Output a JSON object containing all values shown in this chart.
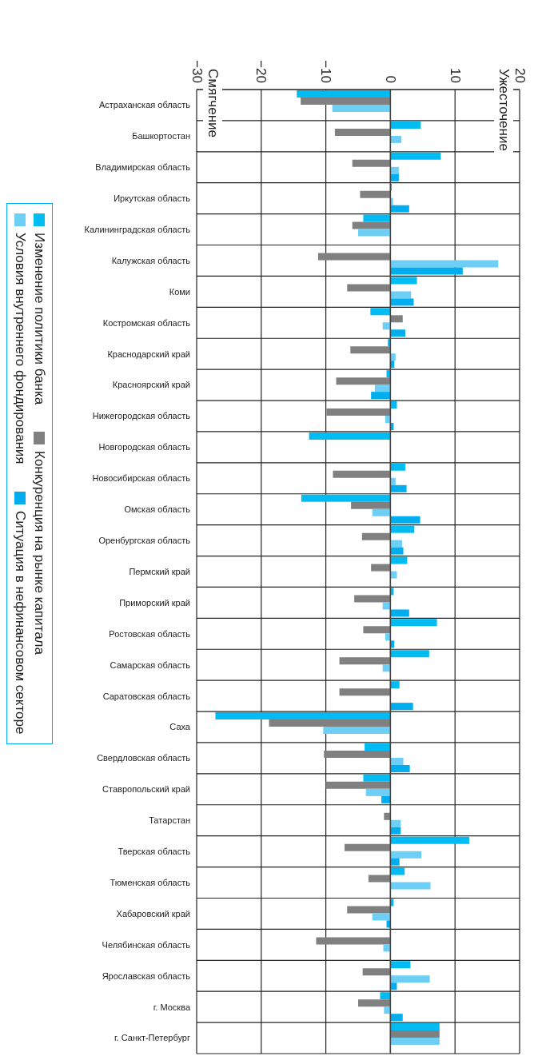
{
  "chart_data": {
    "type": "bar",
    "orientation": "horizontal",
    "categories": [
      "Астраханская область",
      "Башкортостан",
      "Владимирская область",
      "Иркутская область",
      "Калининградская область",
      "Калужская область",
      "Коми",
      "Костромская область",
      "Краснодарский край",
      "Красноярский край",
      "Нижегородская область",
      "Новгородская область",
      "Новосибирская область",
      "Омская область",
      "Оренбургская область",
      "Пермский край",
      "Приморский край",
      "Ростовская область",
      "Самарская область",
      "Саратовская область",
      "Саха",
      "Свердловская область",
      "Ставропольский край",
      "Татарстан",
      "Тверская область",
      "Тюменская область",
      "Хабаровский край",
      "Челябинская область",
      "Ярославская область",
      "г. Москва",
      "г. Санкт-Петербург"
    ],
    "series": [
      {
        "name": "Изменение политики банка",
        "color": "#00bcf2",
        "values": [
          -14.5,
          4.7,
          7.8,
          0.2,
          -4.2,
          null,
          4.1,
          -3.1,
          -0.4,
          -0.6,
          1.0,
          -12.6,
          2.3,
          -13.8,
          3.7,
          2.6,
          0.5,
          7.2,
          6.0,
          1.4,
          -27.1,
          -4.0,
          -4.2,
          null,
          12.2,
          2.2,
          0.5,
          null,
          3.1,
          -1.6,
          7.6
        ]
      },
      {
        "name": "Конкуренция на рынке капитала",
        "color": "#808080",
        "values": [
          -13.9,
          -8.6,
          -5.9,
          -4.7,
          -5.9,
          -11.2,
          -6.7,
          1.9,
          -6.2,
          -8.4,
          -9.9,
          null,
          -8.9,
          -6.1,
          -4.4,
          -3.0,
          -5.6,
          -4.2,
          -7.9,
          -7.9,
          -18.8,
          -10.3,
          -10.0,
          -1.0,
          -7.1,
          -3.4,
          -6.7,
          -11.5,
          -4.3,
          -5.0,
          7.6
        ]
      },
      {
        "name": "Условия внутреннего фондирования",
        "color": "#6dcff6",
        "values": [
          -9.0,
          1.7,
          1.3,
          0.4,
          -5.0,
          16.7,
          3.2,
          -1.2,
          0.8,
          -2.4,
          -0.8,
          null,
          0.8,
          -2.8,
          1.8,
          1.0,
          -1.2,
          -0.8,
          -1.2,
          null,
          -10.4,
          2.0,
          -3.8,
          1.6,
          4.8,
          6.2,
          -2.8,
          -1.1,
          6.1,
          -1.0,
          7.6
        ]
      },
      {
        "name": "Ситуация в нефинансовом секторе",
        "color": "#00aeef",
        "values": [
          null,
          null,
          1.3,
          2.9,
          null,
          11.2,
          3.6,
          2.3,
          0.6,
          -3.0,
          0.5,
          null,
          2.5,
          4.6,
          2.0,
          null,
          2.9,
          0.6,
          null,
          3.5,
          null,
          3.0,
          -1.4,
          1.6,
          1.4,
          null,
          -0.6,
          null,
          1.0,
          1.9,
          null
        ]
      }
    ],
    "xlim": [
      -30,
      20
    ],
    "xticks": [
      {
        "value": -30,
        "label": "−30"
      },
      {
        "value": -20,
        "label": "−20"
      },
      {
        "value": -10,
        "label": "−10"
      },
      0,
      10,
      20
    ],
    "grid": true,
    "legend": "left",
    "annotations": [
      "Смягчение",
      "Ужесточение"
    ]
  }
}
